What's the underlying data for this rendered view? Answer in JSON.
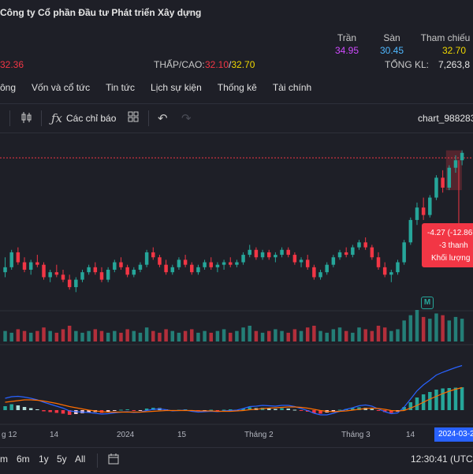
{
  "header": {
    "company_name": "Công ty Cổ phần Đầu tư Phát triển Xây dựng",
    "ceiling_label": "Trần",
    "floor_label": "Sàn",
    "reference_label": "Tham chiếu",
    "ceiling_value": "34.95",
    "floor_value": "30.45",
    "reference_value": "32.70",
    "price_partial": "32.36",
    "low_high_label": "THẤP/CAO:",
    "low_value": "32.10",
    "high_value": "32.70",
    "total_volume_label": "TỔNG KL:",
    "total_volume_value": "7,263,8",
    "colors": {
      "ceiling": "#d04bff",
      "floor": "#4fb8ff",
      "reference": "#f0d800",
      "down": "#f23645",
      "up": "#26a69a"
    }
  },
  "tabs": [
    "ông",
    "Vốn và cổ tức",
    "Tin tức",
    "Lịch sự kiện",
    "Thống kê",
    "Tài chính"
  ],
  "toolbar": {
    "indicators_label": "Các chỉ báo",
    "chart_name": "chart_988283",
    "icons": [
      "candles-icon",
      "function-icon",
      "layout-grid-icon",
      "undo-icon",
      "redo-icon"
    ]
  },
  "tooltip": {
    "change": "-4.27 (-12.86",
    "bars": "-3 thanh",
    "volume_label": "Khối lượng"
  },
  "x_axis": {
    "labels": [
      "g 12",
      "14",
      "2024",
      "15",
      "Tháng 2",
      "Tháng 3",
      "14"
    ],
    "crosshair_date": "2024-03-2"
  },
  "event_marker": "M",
  "bottom_bar": {
    "ranges": [
      "m",
      "6m",
      "1y",
      "5y",
      "All"
    ],
    "calendar_icon": "calendar-range-icon",
    "clock": "12:30:41 (UTC+"
  },
  "chart_data": {
    "type": "candlestick",
    "subpanels": [
      "volume",
      "macd"
    ],
    "candles": [
      [
        12.7,
        13.3,
        12.5,
        12.9
      ],
      [
        12.9,
        13.6,
        12.8,
        13.5
      ],
      [
        13.5,
        13.7,
        13.0,
        13.1
      ],
      [
        13.1,
        13.3,
        12.7,
        12.8
      ],
      [
        12.8,
        13.2,
        12.6,
        13.1
      ],
      [
        13.1,
        13.4,
        12.9,
        13.0
      ],
      [
        13.0,
        13.1,
        12.4,
        12.5
      ],
      [
        12.5,
        12.8,
        12.3,
        12.7
      ],
      [
        12.7,
        13.0,
        12.5,
        12.6
      ],
      [
        12.6,
        12.8,
        12.3,
        12.4
      ],
      [
        12.4,
        12.6,
        12.0,
        12.1
      ],
      [
        12.1,
        12.5,
        11.9,
        12.4
      ],
      [
        12.4,
        12.8,
        12.3,
        12.7
      ],
      [
        12.7,
        13.0,
        12.6,
        12.9
      ],
      [
        12.9,
        13.1,
        12.6,
        12.7
      ],
      [
        12.7,
        12.9,
        12.3,
        12.4
      ],
      [
        12.4,
        12.9,
        12.3,
        12.8
      ],
      [
        12.8,
        13.2,
        12.7,
        13.1
      ],
      [
        13.1,
        13.3,
        12.8,
        12.9
      ],
      [
        12.9,
        13.0,
        12.5,
        12.6
      ],
      [
        12.6,
        12.9,
        12.5,
        12.8
      ],
      [
        12.8,
        13.1,
        12.7,
        13.0
      ],
      [
        13.0,
        13.6,
        12.9,
        13.5
      ],
      [
        13.5,
        13.7,
        13.2,
        13.3
      ],
      [
        13.3,
        13.4,
        12.9,
        13.0
      ],
      [
        13.0,
        13.2,
        12.6,
        12.7
      ],
      [
        12.7,
        13.0,
        12.6,
        12.9
      ],
      [
        12.9,
        13.3,
        12.8,
        13.2
      ],
      [
        13.2,
        13.4,
        12.9,
        13.0
      ],
      [
        13.0,
        13.1,
        12.6,
        12.7
      ],
      [
        12.7,
        13.0,
        12.6,
        12.9
      ],
      [
        12.9,
        13.2,
        12.8,
        13.1
      ],
      [
        13.1,
        13.3,
        12.8,
        12.9
      ],
      [
        12.9,
        13.1,
        12.7,
        13.0
      ],
      [
        13.0,
        13.2,
        12.8,
        13.1
      ],
      [
        13.1,
        13.3,
        12.9,
        13.0
      ],
      [
        13.0,
        13.2,
        12.9,
        13.1
      ],
      [
        13.1,
        13.5,
        13.0,
        13.4
      ],
      [
        13.4,
        13.8,
        13.3,
        13.6
      ],
      [
        13.6,
        13.7,
        13.2,
        13.3
      ],
      [
        13.3,
        13.6,
        13.2,
        13.5
      ],
      [
        13.5,
        13.6,
        13.2,
        13.3
      ],
      [
        13.3,
        13.5,
        13.1,
        13.4
      ],
      [
        13.4,
        13.7,
        13.3,
        13.6
      ],
      [
        13.6,
        13.7,
        13.3,
        13.4
      ],
      [
        13.4,
        13.5,
        13.0,
        13.1
      ],
      [
        13.1,
        13.3,
        12.9,
        13.2
      ],
      [
        13.2,
        13.4,
        12.8,
        12.9
      ],
      [
        12.9,
        13.0,
        12.4,
        12.5
      ],
      [
        12.5,
        12.8,
        12.4,
        12.7
      ],
      [
        12.7,
        13.1,
        12.6,
        13.0
      ],
      [
        13.0,
        13.4,
        12.9,
        13.3
      ],
      [
        13.3,
        13.6,
        13.2,
        13.5
      ],
      [
        13.5,
        13.7,
        13.3,
        13.4
      ],
      [
        13.4,
        13.8,
        13.3,
        13.7
      ],
      [
        13.7,
        14.0,
        13.6,
        13.9
      ],
      [
        13.9,
        14.1,
        13.6,
        13.7
      ],
      [
        13.7,
        13.8,
        13.2,
        13.3
      ],
      [
        13.3,
        13.5,
        12.8,
        12.9
      ],
      [
        12.9,
        13.1,
        12.5,
        12.6
      ],
      [
        12.6,
        12.8,
        12.3,
        12.7
      ],
      [
        12.7,
        13.2,
        12.6,
        13.1
      ],
      [
        13.1,
        14.0,
        13.0,
        13.9
      ],
      [
        13.9,
        14.9,
        13.8,
        14.8
      ],
      [
        14.8,
        15.5,
        14.6,
        15.3
      ],
      [
        15.3,
        15.7,
        14.8,
        15.0
      ],
      [
        15.0,
        15.8,
        14.9,
        15.7
      ],
      [
        15.7,
        16.6,
        15.6,
        16.5
      ],
      [
        16.5,
        16.8,
        15.9,
        16.1
      ],
      [
        16.1,
        17.0,
        16.0,
        16.9
      ],
      [
        16.9,
        17.4,
        16.7,
        17.2
      ],
      [
        17.2,
        17.6,
        17.0,
        17.5
      ]
    ],
    "volumes": [
      6,
      5,
      7,
      6,
      5,
      6,
      8,
      6,
      5,
      7,
      9,
      6,
      5,
      6,
      7,
      6,
      5,
      6,
      5,
      7,
      6,
      5,
      8,
      6,
      5,
      7,
      6,
      5,
      6,
      7,
      5,
      6,
      5,
      6,
      7,
      5,
      6,
      8,
      9,
      6,
      5,
      6,
      7,
      6,
      5,
      7,
      6,
      8,
      9,
      6,
      5,
      7,
      8,
      6,
      5,
      8,
      7,
      6,
      9,
      8,
      6,
      7,
      12,
      15,
      18,
      14,
      13,
      16,
      15,
      12,
      14,
      13
    ],
    "macd_hist": [
      0.1,
      0.15,
      0.12,
      0.08,
      0.05,
      0.02,
      -0.03,
      -0.05,
      -0.07,
      -0.09,
      -0.12,
      -0.1,
      -0.08,
      -0.06,
      -0.05,
      -0.07,
      -0.04,
      -0.02,
      0.01,
      0.02,
      -0.02,
      -0.01,
      0.04,
      0.06,
      0.05,
      0.02,
      -0.01,
      0.01,
      0.02,
      -0.02,
      -0.03,
      -0.01,
      0.01,
      -0.02,
      0.01,
      0.02,
      0.01,
      0.04,
      0.07,
      0.05,
      0.06,
      0.04,
      0.03,
      0.05,
      0.04,
      0.01,
      -0.02,
      -0.04,
      -0.08,
      -0.09,
      -0.06,
      -0.03,
      0.01,
      0.03,
      0.05,
      0.07,
      0.06,
      0.03,
      -0.02,
      -0.05,
      -0.07,
      -0.04,
      0.08,
      0.2,
      0.32,
      0.4,
      0.46,
      0.52,
      0.55,
      0.56,
      0.57,
      0.58
    ],
    "macd_line": [
      0.3,
      0.34,
      0.35,
      0.33,
      0.3,
      0.26,
      0.2,
      0.15,
      0.1,
      0.05,
      -0.02,
      -0.04,
      -0.05,
      -0.06,
      -0.08,
      -0.1,
      -0.09,
      -0.07,
      -0.05,
      -0.04,
      -0.06,
      -0.05,
      -0.01,
      0.02,
      0.03,
      0.01,
      -0.02,
      -0.01,
      0.0,
      -0.03,
      -0.05,
      -0.04,
      -0.03,
      -0.04,
      -0.02,
      -0.01,
      0.0,
      0.04,
      0.09,
      0.1,
      0.12,
      0.11,
      0.1,
      0.12,
      0.12,
      0.09,
      0.04,
      -0.01,
      -0.08,
      -0.12,
      -0.12,
      -0.08,
      -0.03,
      0.02,
      0.06,
      0.11,
      0.13,
      0.1,
      0.03,
      -0.04,
      -0.09,
      -0.07,
      0.08,
      0.28,
      0.49,
      0.64,
      0.76,
      0.89,
      0.96,
      1.02,
      1.08,
      1.13
    ],
    "signal_line": [
      0.2,
      0.22,
      0.24,
      0.26,
      0.26,
      0.25,
      0.23,
      0.2,
      0.17,
      0.13,
      0.09,
      0.06,
      0.03,
      0.0,
      -0.02,
      -0.04,
      -0.05,
      -0.05,
      -0.05,
      -0.05,
      -0.05,
      -0.05,
      -0.04,
      -0.03,
      -0.02,
      -0.01,
      -0.01,
      -0.01,
      -0.01,
      -0.01,
      -0.02,
      -0.02,
      -0.02,
      -0.03,
      -0.03,
      -0.03,
      -0.02,
      -0.01,
      0.01,
      0.02,
      0.04,
      0.05,
      0.06,
      0.07,
      0.08,
      0.08,
      0.07,
      0.05,
      0.02,
      -0.01,
      -0.03,
      -0.04,
      -0.03,
      -0.02,
      0.0,
      0.02,
      0.04,
      0.05,
      0.04,
      0.02,
      -0.01,
      -0.02,
      -0.01,
      0.05,
      0.12,
      0.2,
      0.28,
      0.35,
      0.42,
      0.48,
      0.53,
      0.57
    ],
    "dotted_price_level": 17.3
  }
}
